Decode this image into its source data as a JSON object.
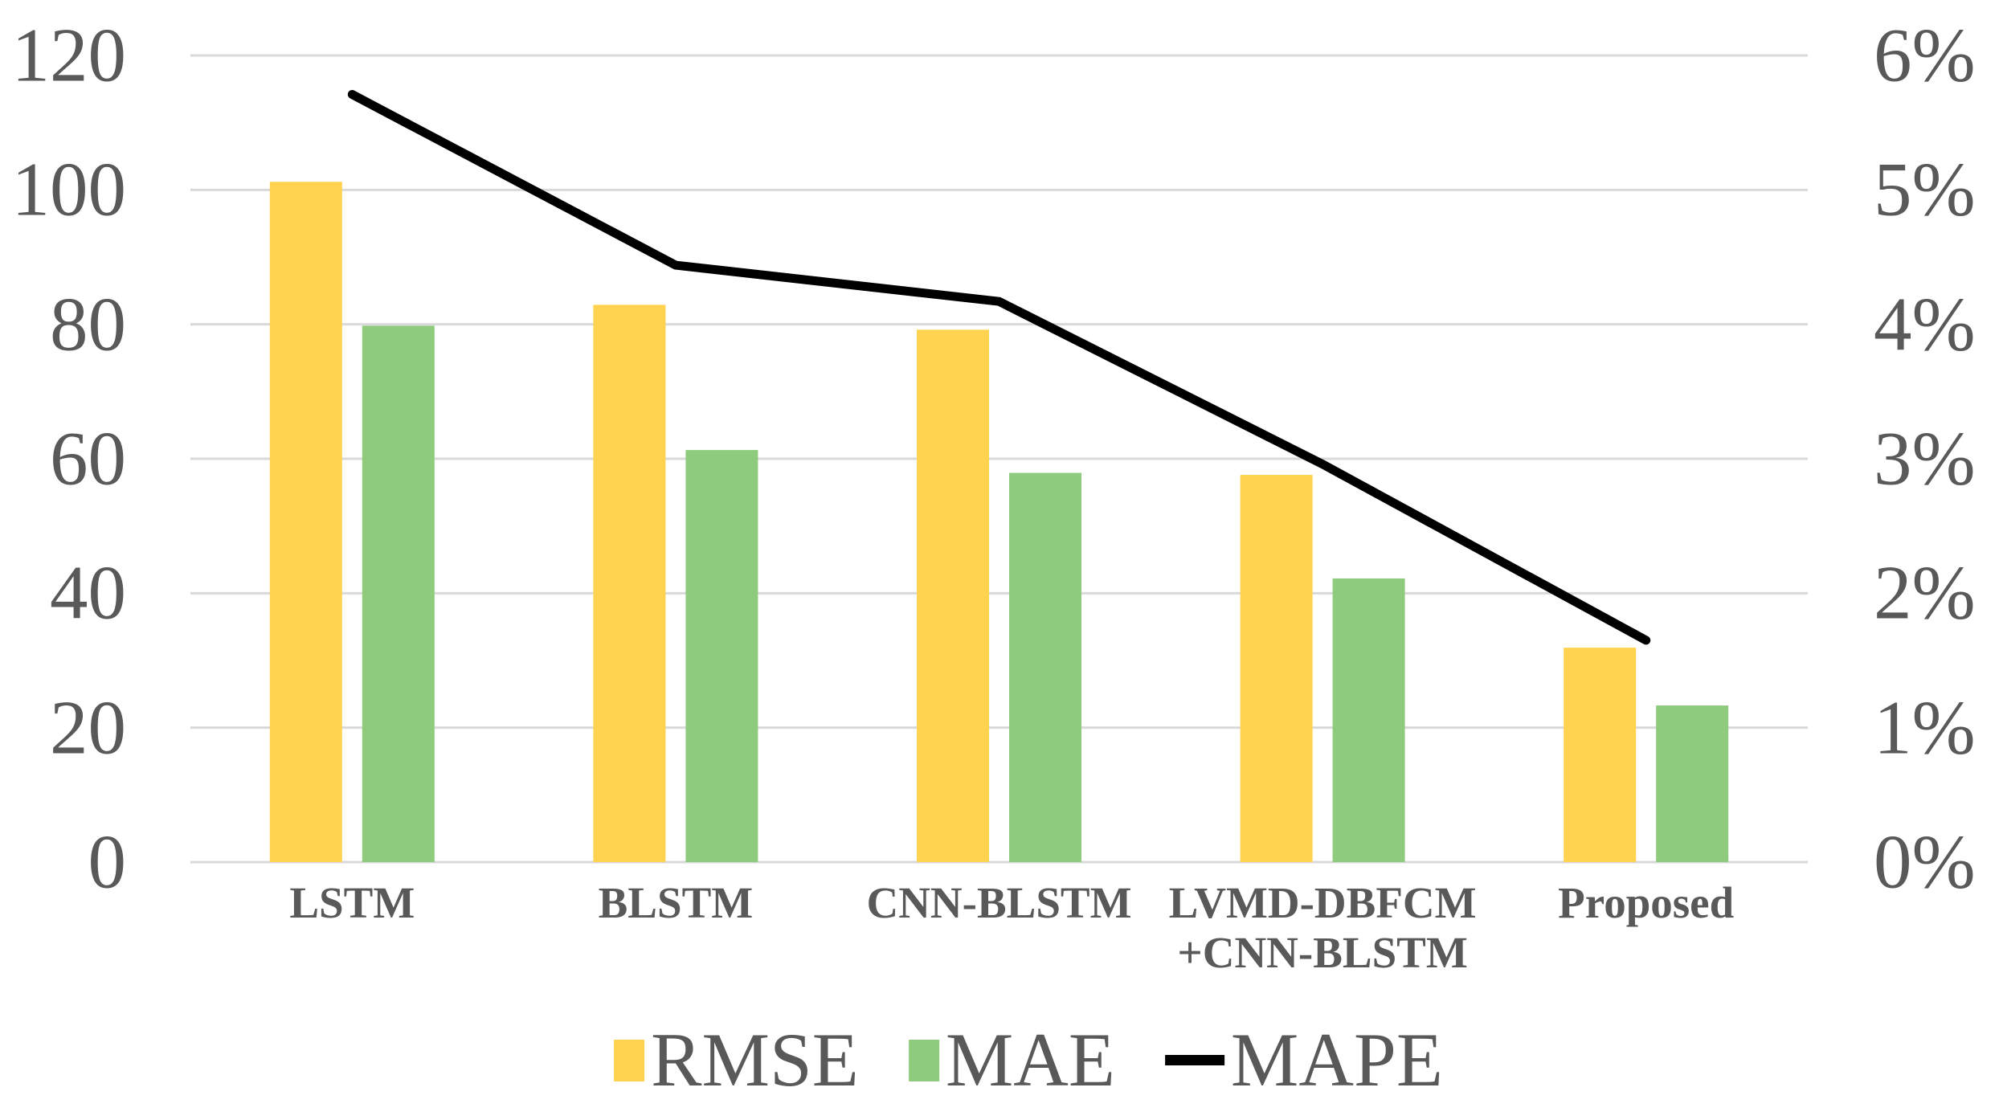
{
  "chart_data": {
    "type": "combo-bar-line",
    "title": "",
    "categories": [
      "LSTM",
      "BLSTM",
      "CNN-BLSTM",
      "LVMD-DBFCM\n+CNN-BLSTM",
      "Proposed"
    ],
    "series": [
      {
        "name": "RMSE",
        "type": "bar",
        "axis": "left",
        "color": "#FFD34F",
        "values": [
          101.2,
          82.9,
          79.2,
          57.6,
          31.9
        ]
      },
      {
        "name": "MAE",
        "type": "bar",
        "axis": "left",
        "color": "#8FCB7D",
        "values": [
          79.8,
          61.3,
          57.9,
          42.2,
          23.3
        ]
      },
      {
        "name": "MAPE",
        "type": "line",
        "axis": "right",
        "color": "#000000",
        "values": [
          5.71,
          4.44,
          4.17,
          2.96,
          1.65
        ]
      }
    ],
    "left_axis": {
      "ticks": [
        "0",
        "20",
        "40",
        "60",
        "80",
        "100",
        "120"
      ],
      "tick_values": [
        0,
        20,
        40,
        60,
        80,
        100,
        120
      ],
      "range": [
        0,
        120
      ]
    },
    "right_axis": {
      "ticks": [
        "0%",
        "1%",
        "2%",
        "3%",
        "4%",
        "5%",
        "6%"
      ],
      "tick_values": [
        0,
        1,
        2,
        3,
        4,
        5,
        6
      ],
      "range": [
        0,
        6
      ]
    },
    "grid": true,
    "gridline_color": "#D9D9D9",
    "text_color": "#595959",
    "legend_position": "bottom"
  }
}
